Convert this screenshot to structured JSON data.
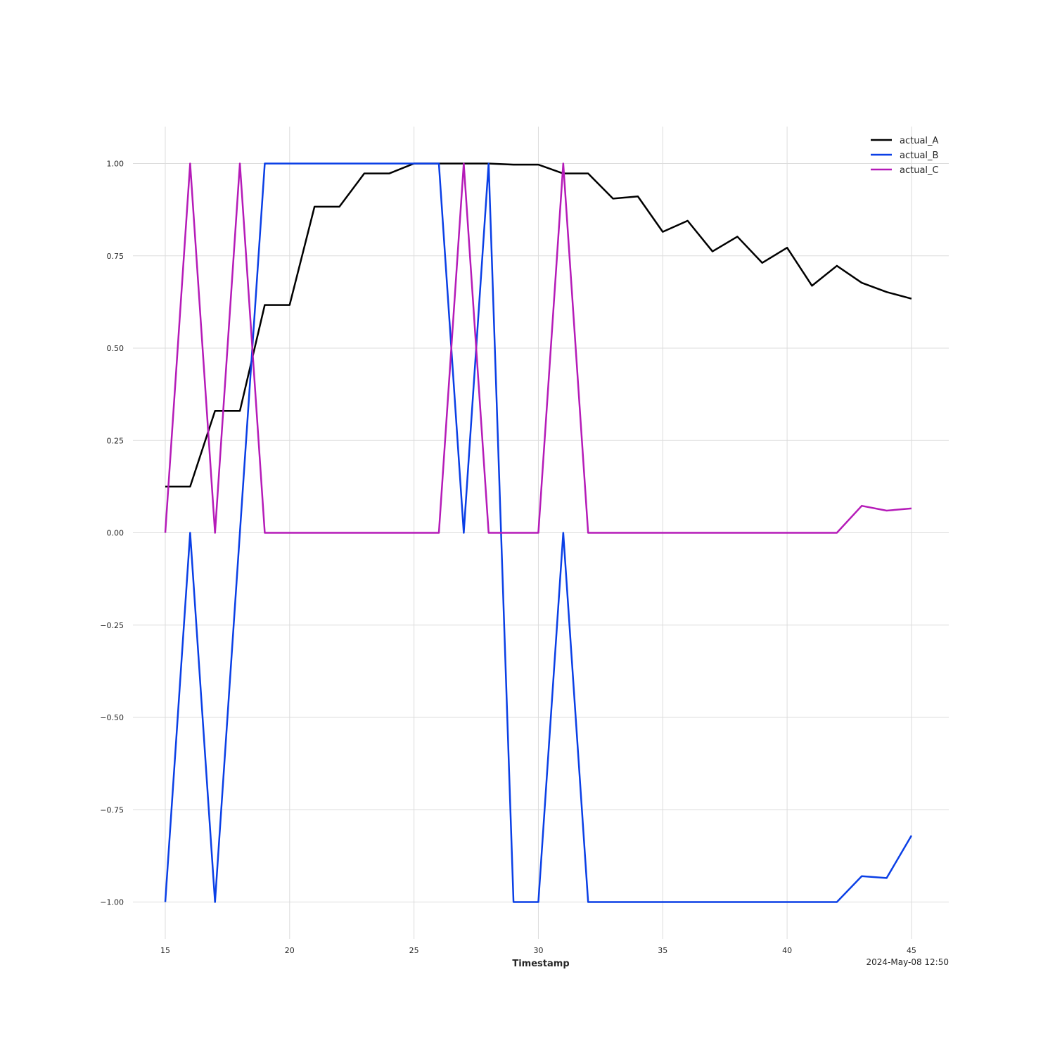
{
  "chart_data": {
    "type": "line",
    "xlabel": "Timestamp",
    "x": [
      15,
      16,
      17,
      18,
      19,
      20,
      21,
      22,
      23,
      24,
      25,
      26,
      27,
      28,
      29,
      30,
      31,
      32,
      33,
      34,
      35,
      36,
      37,
      38,
      39,
      40,
      41,
      42,
      43,
      44,
      45
    ],
    "xlim": [
      13.7,
      46.5
    ],
    "ylim": [
      -1.1,
      1.1
    ],
    "x_ticks": [
      15,
      20,
      25,
      30,
      35,
      40,
      45
    ],
    "y_ticks": [
      -1.0,
      -0.75,
      -0.5,
      -0.25,
      0.0,
      0.25,
      0.5,
      0.75,
      1.0
    ],
    "y_tick_labels": [
      "−1.00",
      "−0.75",
      "−0.50",
      "−0.25",
      "0.00",
      "0.25",
      "0.50",
      "0.75",
      "1.00"
    ],
    "grid": true,
    "legend_position": "top-right",
    "series": [
      {
        "name": "actual_A",
        "color": "#000000",
        "values": [
          0.125,
          0.125,
          0.33,
          0.33,
          0.617,
          0.617,
          0.883,
          0.883,
          0.973,
          0.973,
          1.0,
          1.0,
          1.0,
          1.0,
          0.997,
          0.997,
          0.973,
          0.973,
          0.905,
          0.911,
          0.815,
          0.845,
          0.762,
          0.802,
          0.731,
          0.772,
          0.669,
          0.723,
          0.677,
          0.652,
          0.634
        ]
      },
      {
        "name": "actual_B",
        "color": "#0a3fe6",
        "values": [
          -1.0,
          0.0,
          -1.0,
          0.0,
          1.0,
          1.0,
          1.0,
          1.0,
          1.0,
          1.0,
          1.0,
          1.0,
          0.0,
          1.0,
          -1.0,
          -1.0,
          0.0,
          -1.0,
          -1.0,
          -1.0,
          -1.0,
          -1.0,
          -1.0,
          -1.0,
          -1.0,
          -1.0,
          -1.0,
          -1.0,
          -0.93,
          -0.935,
          -0.82
        ]
      },
      {
        "name": "actual_C",
        "color": "#b51bb8",
        "values": [
          0.0,
          1.0,
          0.0,
          1.0,
          0.0,
          0.0,
          0.0,
          0.0,
          0.0,
          0.0,
          0.0,
          0.0,
          1.0,
          0.0,
          0.0,
          0.0,
          1.0,
          0.0,
          0.0,
          0.0,
          0.0,
          0.0,
          0.0,
          0.0,
          0.0,
          0.0,
          0.0,
          0.0,
          0.073,
          0.06,
          0.066
        ]
      }
    ],
    "annotation": "2024-May-08 12:50"
  }
}
